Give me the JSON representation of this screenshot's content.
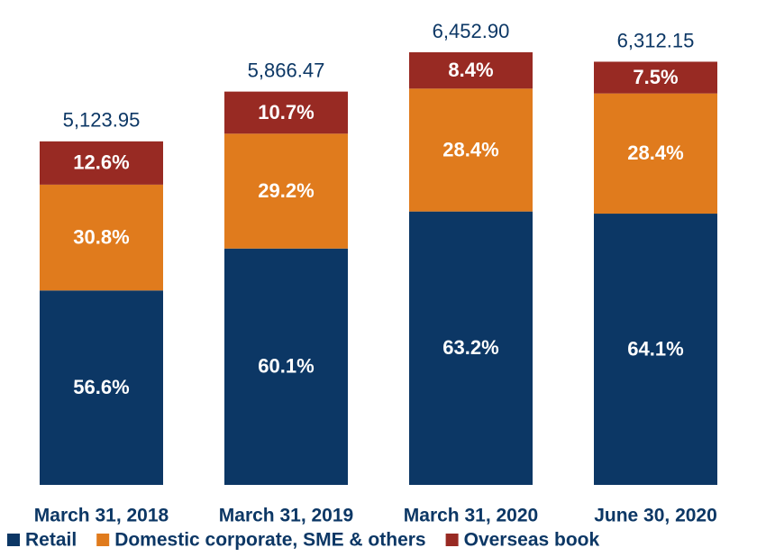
{
  "chart_data": {
    "type": "stacked_bar",
    "categories": [
      "March 31, 2018",
      "March 31, 2019",
      "March 31, 2020",
      "June 30, 2020"
    ],
    "totals": {
      "values": [
        5123.95,
        5866.47,
        6452.9,
        6312.15
      ],
      "value_labels": [
        "5,123.95",
        "5,866.47",
        "6,452.90",
        "6,312.15"
      ]
    },
    "series": [
      {
        "name": "Retail",
        "color": "#0c3765",
        "values": [
          56.6,
          60.1,
          63.2,
          64.1
        ],
        "value_labels": [
          "56.6%",
          "60.1%",
          "63.2%",
          "64.1%"
        ]
      },
      {
        "name": "Domestic corporate, SME & others",
        "color": "#e07b1d",
        "values": [
          30.8,
          29.2,
          28.4,
          28.4
        ],
        "value_labels": [
          "30.8%",
          "29.2%",
          "28.4%",
          "28.4%"
        ]
      },
      {
        "name": "Overseas book",
        "color": "#982a23",
        "values": [
          12.6,
          10.7,
          8.4,
          7.5
        ],
        "value_labels": [
          "12.6%",
          "10.7%",
          "8.4%",
          "7.5%"
        ]
      }
    ],
    "legend": "bottom"
  }
}
